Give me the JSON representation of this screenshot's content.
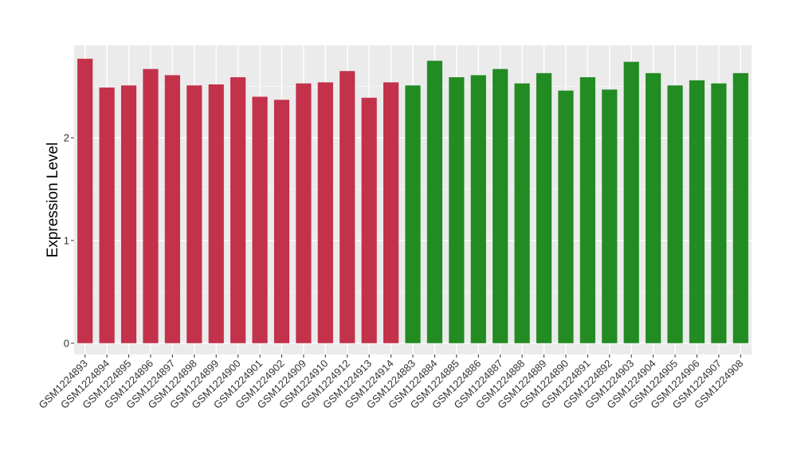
{
  "chart_data": {
    "type": "bar",
    "ylabel": "Expression Level",
    "xlabel": "",
    "ylim": [
      -0.11,
      2.9
    ],
    "yticks": [
      0,
      1,
      2
    ],
    "grid": true,
    "panel_background": "#ebebeb",
    "categories": [
      "GSM1224893",
      "GSM1224894",
      "GSM1224895",
      "GSM1224896",
      "GSM1224897",
      "GSM1224898",
      "GSM1224899",
      "GSM1224900",
      "GSM1224901",
      "GSM1224902",
      "GSM1224909",
      "GSM1224910",
      "GSM1224912",
      "GSM1224913",
      "GSM1224914",
      "GSM1224883",
      "GSM1224884",
      "GSM1224885",
      "GSM1224886",
      "GSM1224887",
      "GSM1224888",
      "GSM1224889",
      "GSM1224890",
      "GSM1224891",
      "GSM1224892",
      "GSM1224903",
      "GSM1224904",
      "GSM1224905",
      "GSM1224906",
      "GSM1224907",
      "GSM1224908"
    ],
    "values": [
      2.77,
      2.49,
      2.51,
      2.67,
      2.61,
      2.51,
      2.52,
      2.59,
      2.4,
      2.37,
      2.53,
      2.54,
      2.65,
      2.39,
      2.54,
      2.51,
      2.75,
      2.59,
      2.61,
      2.67,
      2.53,
      2.63,
      2.46,
      2.59,
      2.47,
      2.74,
      2.63,
      2.51,
      2.56,
      2.53,
      2.63
    ],
    "group_colors": [
      "#c3314a",
      "#228b22"
    ],
    "groups": [
      0,
      0,
      0,
      0,
      0,
      0,
      0,
      0,
      0,
      0,
      0,
      0,
      0,
      0,
      0,
      1,
      1,
      1,
      1,
      1,
      1,
      1,
      1,
      1,
      1,
      1,
      1,
      1,
      1,
      1,
      1
    ]
  }
}
